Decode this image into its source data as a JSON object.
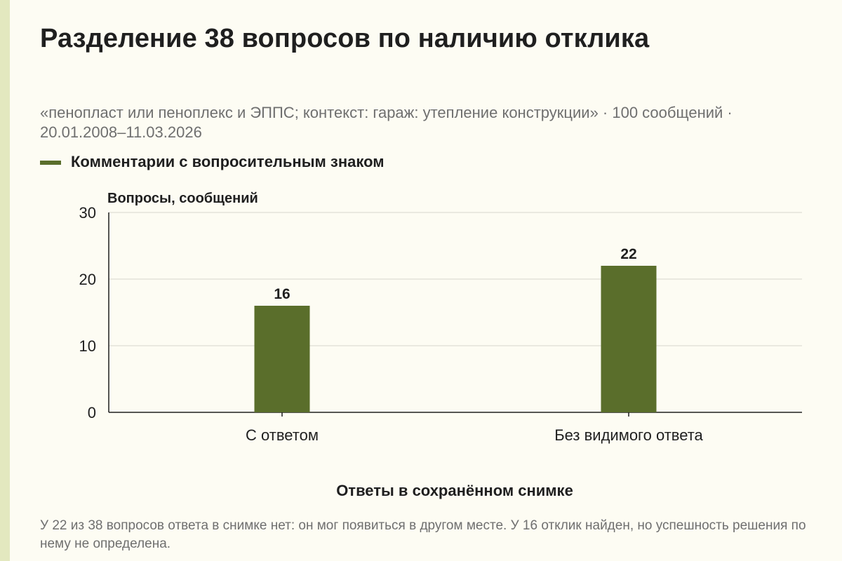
{
  "header": {
    "title": "Разделение 38 вопросов по наличию отклика",
    "subtitle": "«пенопласт или пеноплекс и ЭППС; контекст: гараж: утепление конструкции» · 100 сообщений · 20.01.2008–11.03.2026"
  },
  "colors": {
    "bar": "#5a6e2b",
    "grid": "#d6d6cc",
    "axis": "#1f1f1f",
    "background": "#fdfcf3"
  },
  "chart_data": {
    "type": "bar",
    "categories": [
      "С ответом",
      "Без видимого ответа"
    ],
    "series": [
      {
        "name": "Комментарии с вопросительным знаком",
        "values": [
          16,
          22
        ]
      }
    ],
    "ylabel": "Вопросы, сообщений",
    "xlabel": "Ответы в сохранённом снимке",
    "ylim": [
      0,
      30
    ],
    "yticks": [
      0,
      10,
      20,
      30
    ],
    "grid": true,
    "legend": "top-left",
    "data_labels": true
  },
  "footer": {
    "note": "У 22 из 38 вопросов ответа в снимке нет: он мог появиться в другом месте. У 16 отклик найден, но успешность решения по нему не определена."
  }
}
